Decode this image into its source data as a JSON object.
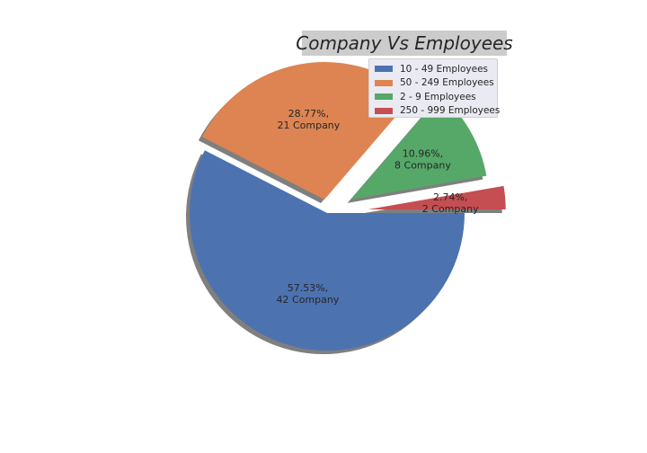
{
  "chart_data": {
    "type": "pie",
    "title": "Company Vs Employees",
    "categories": [
      "10 - 49 Employees",
      "50 - 249 Employees",
      "2 - 9 Employees",
      "250 - 999 Employees"
    ],
    "values": [
      42,
      21,
      8,
      2
    ],
    "percent_labels": [
      "57.53%,",
      "28.77%,",
      "10.96%,",
      "2.74%,"
    ],
    "count_labels": [
      "42 Company",
      "21 Company",
      "8 Company",
      "2 Company"
    ],
    "explode": [
      0,
      0.1,
      0.2,
      0.3
    ],
    "start_angle_deg": 0,
    "shadow": true,
    "colors": [
      "#4c72b0",
      "#dd8452",
      "#55a868",
      "#c44e52"
    ],
    "legend_placement": "upper-right"
  }
}
